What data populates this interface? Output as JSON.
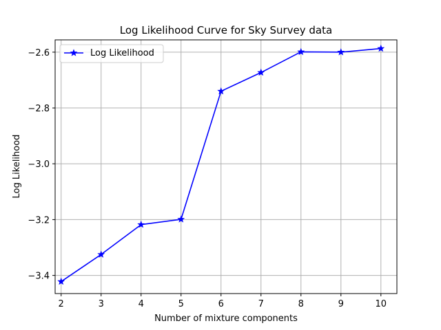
{
  "chart_data": {
    "type": "line",
    "title": "Log Likelihood Curve for Sky Survey data",
    "xlabel": "Number of mixture components",
    "ylabel": "Log Likelihood",
    "x": [
      2,
      3,
      4,
      5,
      6,
      7,
      8,
      9,
      10
    ],
    "series": [
      {
        "name": "Log Likelihood",
        "values": [
          -3.422,
          -3.325,
          -3.218,
          -3.199,
          -2.74,
          -2.673,
          -2.599,
          -2.6,
          -2.587
        ],
        "color": "#0000ff",
        "marker": "star"
      }
    ],
    "xlim": [
      1.85,
      10.4
    ],
    "ylim": [
      -3.465,
      -2.556
    ],
    "xticks": [
      2,
      3,
      4,
      5,
      6,
      7,
      8,
      9,
      10
    ],
    "yticks": [
      -3.4,
      -3.2,
      -3.0,
      -2.8,
      -2.6
    ],
    "ytick_labels": [
      "−3.4",
      "−3.2",
      "−3.0",
      "−2.8",
      "−2.6"
    ],
    "grid": true,
    "legend_position": "top-left"
  }
}
